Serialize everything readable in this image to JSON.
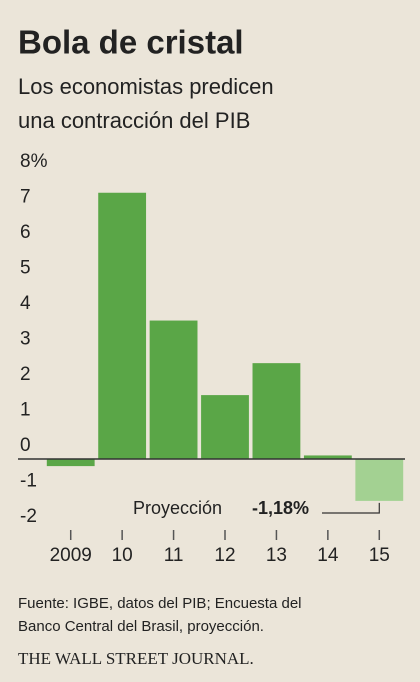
{
  "chart_data": {
    "type": "bar",
    "title": "Bola de cristal",
    "subtitle": [
      "Los economistas predicen",
      "una contracción del PIB"
    ],
    "categories": [
      "2009",
      "10",
      "11",
      "12",
      "13",
      "14",
      "15"
    ],
    "values": [
      -0.2,
      7.5,
      3.9,
      1.8,
      2.7,
      0.1,
      -1.18
    ],
    "value_labels": [
      null,
      null,
      null,
      null,
      null,
      null,
      "-1,18%"
    ],
    "colors": [
      "#5aa647",
      "#5aa647",
      "#5aa647",
      "#5aa647",
      "#5aa647",
      "#5aa647",
      "#a3d192"
    ],
    "annotation": "Proyección",
    "ylim": [
      -2.2,
      8.3
    ],
    "yticks": [
      {
        "value": 8,
        "label": "8%"
      },
      7,
      6,
      5,
      4,
      3,
      2,
      1,
      0,
      -1,
      -2
    ],
    "source": [
      "Fuente: IGBE, datos del PIB; Encuesta del",
      "Banco Central del Brasil, proyección."
    ],
    "credit": "THE WALL STREET JOURNAL."
  }
}
